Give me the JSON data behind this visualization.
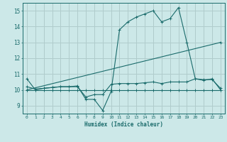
{
  "xlabel": "Humidex (Indice chaleur)",
  "bg_color": "#cce8e8",
  "grid_color": "#b0cccc",
  "line_color": "#1a6b6b",
  "xlim": [
    -0.5,
    23.5
  ],
  "ylim": [
    8.5,
    15.5
  ],
  "xticks": [
    0,
    1,
    2,
    3,
    4,
    5,
    6,
    7,
    8,
    9,
    10,
    11,
    12,
    13,
    14,
    15,
    16,
    17,
    18,
    19,
    20,
    21,
    22,
    23
  ],
  "yticks": [
    9,
    10,
    11,
    12,
    13,
    14,
    15
  ],
  "series": [
    {
      "x": [
        0,
        1,
        2,
        3,
        4,
        5,
        6,
        7,
        8,
        9,
        10,
        11,
        12,
        13,
        14,
        15,
        16,
        17,
        18,
        19,
        20,
        21,
        22,
        23
      ],
      "y": [
        10.7,
        10.0,
        10.1,
        10.15,
        10.2,
        10.2,
        10.25,
        9.4,
        9.4,
        8.7,
        9.9,
        13.8,
        14.3,
        14.6,
        14.8,
        15.0,
        14.3,
        14.5,
        15.2,
        13.0,
        10.7,
        10.6,
        10.7,
        10.0
      ]
    },
    {
      "x": [
        0,
        1,
        2,
        3,
        4,
        5,
        6,
        7,
        8,
        9,
        10,
        11,
        12,
        13,
        14,
        15,
        16,
        17,
        18,
        19,
        20,
        21,
        22,
        23
      ],
      "y": [
        10.0,
        10.0,
        10.0,
        10.0,
        10.0,
        10.0,
        10.0,
        10.0,
        10.0,
        10.0,
        10.0,
        10.0,
        10.0,
        10.0,
        10.0,
        10.0,
        10.0,
        10.0,
        10.0,
        10.0,
        10.0,
        10.0,
        10.0,
        10.0
      ]
    },
    {
      "x": [
        0,
        23
      ],
      "y": [
        10.0,
        13.0
      ]
    },
    {
      "x": [
        0,
        1,
        2,
        3,
        4,
        5,
        6,
        7,
        8,
        9,
        10,
        11,
        12,
        13,
        14,
        15,
        16,
        17,
        18,
        19,
        20,
        21,
        22,
        23
      ],
      "y": [
        10.2,
        10.05,
        10.1,
        10.15,
        10.2,
        10.2,
        10.2,
        9.55,
        9.7,
        9.7,
        10.35,
        10.4,
        10.4,
        10.4,
        10.45,
        10.5,
        10.4,
        10.5,
        10.5,
        10.5,
        10.7,
        10.65,
        10.65,
        10.1
      ]
    }
  ]
}
